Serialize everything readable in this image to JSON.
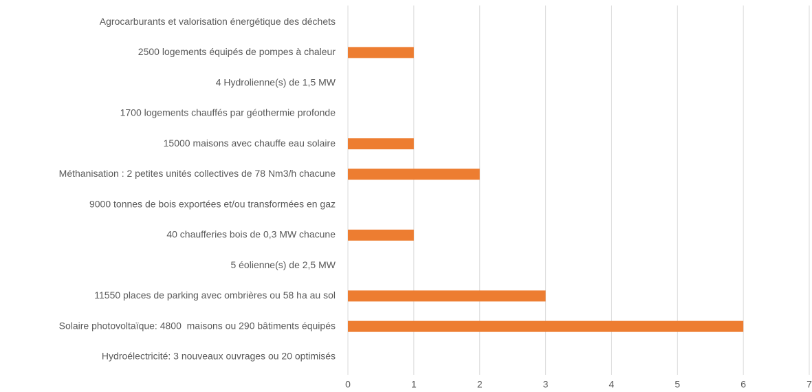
{
  "chart_data": {
    "type": "bar",
    "orientation": "horizontal",
    "categories": [
      "Agrocarburants et valorisation énergétique des déchets",
      "2500 logements équipés de pompes à chaleur",
      "4 Hydrolienne(s) de 1,5 MW",
      "1700 logements chauffés par géothermie profonde",
      "15000 maisons avec chauffe eau solaire",
      "Méthanisation : 2 petites unités collectives de 78 Nm3/h chacune",
      "9000 tonnes de bois exportées et/ou transformées en gaz",
      "40 chaufferies bois de 0,3 MW chacune",
      "5 éolienne(s) de 2,5 MW",
      "11550 places de parking avec ombrières ou 58 ha au sol",
      "Solaire photovoltaïque: 4800  maisons ou 290 bâtiments équipés",
      "Hydroélectricité: 3 nouveaux ouvrages ou 20 optimisés"
    ],
    "values": [
      0,
      1,
      0,
      0,
      1,
      2,
      0,
      1,
      0,
      3,
      6,
      0
    ],
    "color": "#ed7d31",
    "xlim": [
      0,
      7
    ],
    "xticks": [
      0,
      1,
      2,
      3,
      4,
      5,
      6,
      7
    ],
    "grid": true
  }
}
